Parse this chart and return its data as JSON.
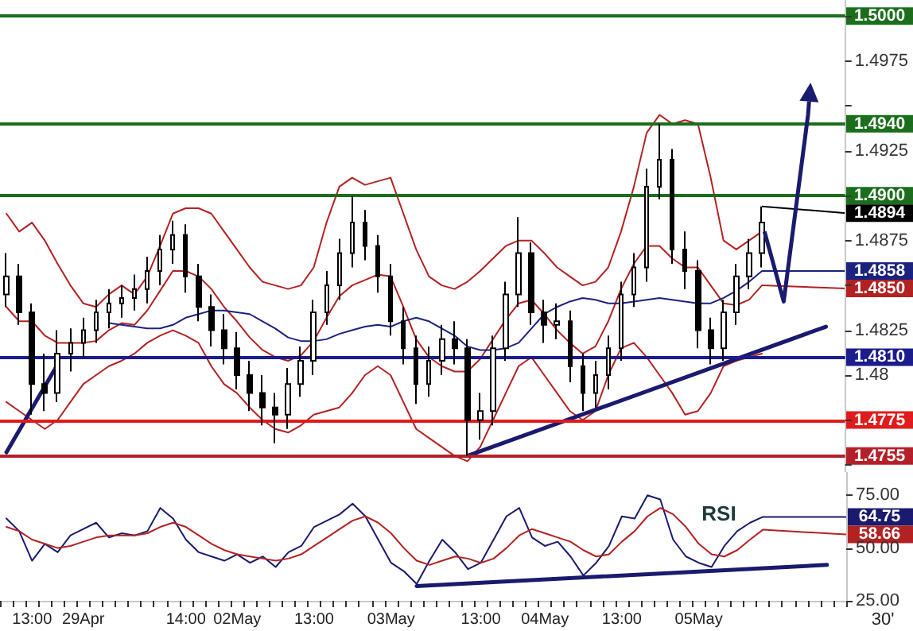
{
  "chart_data": [
    {
      "type": "candlestick",
      "color": "#000000",
      "marker": "none",
      "tick_labels": "y",
      "categories": [
        null,
        null,
        null,
        null,
        null,
        null,
        null,
        null,
        null,
        null,
        null,
        null,
        null,
        null,
        null,
        null,
        null,
        null,
        null,
        null,
        null,
        null,
        null,
        null,
        null,
        null,
        null,
        null,
        null,
        null,
        null,
        null,
        null,
        null,
        null,
        null,
        null,
        null,
        null,
        null,
        null,
        null,
        null,
        null,
        null,
        null,
        null,
        null,
        null,
        null,
        null,
        null,
        null,
        null,
        null,
        null,
        null,
        null,
        null,
        null,
        null,
        null,
        null,
        null,
        null,
        null
      ],
      "ohlc": [
        [
          1.4845,
          1.4868,
          1.4838,
          1.4855
        ],
        [
          1.4855,
          1.4862,
          1.4828,
          1.4835
        ],
        [
          1.4835,
          1.484,
          1.4778,
          1.4795
        ],
        [
          1.4795,
          1.4812,
          1.478,
          1.479
        ],
        [
          1.479,
          1.4825,
          1.4785,
          1.4812
        ],
        [
          1.4812,
          1.4826,
          1.4802,
          1.4818
        ],
        [
          1.4818,
          1.4832,
          1.481,
          1.4825
        ],
        [
          1.4825,
          1.4842,
          1.4818,
          1.4835
        ],
        [
          1.4835,
          1.4848,
          1.4826,
          1.484
        ],
        [
          1.484,
          1.485,
          1.4832,
          1.4843
        ],
        [
          1.4843,
          1.4856,
          1.4836,
          1.4848
        ],
        [
          1.4848,
          1.4866,
          1.484,
          1.4858
        ],
        [
          1.4858,
          1.4878,
          1.485,
          1.487
        ],
        [
          1.487,
          1.4886,
          1.4862,
          1.4878
        ],
        [
          1.4878,
          1.4884,
          1.4846,
          1.4855
        ],
        [
          1.4855,
          1.4862,
          1.483,
          1.4838
        ],
        [
          1.4838,
          1.4845,
          1.4816,
          1.4825
        ],
        [
          1.4825,
          1.4834,
          1.4806,
          1.4815
        ],
        [
          1.4815,
          1.4824,
          1.4792,
          1.48
        ],
        [
          1.48,
          1.4808,
          1.478,
          1.479
        ],
        [
          1.479,
          1.48,
          1.4772,
          1.4782
        ],
        [
          1.4782,
          1.479,
          1.4762,
          1.4778
        ],
        [
          1.4778,
          1.4804,
          1.477,
          1.4795
        ],
        [
          1.4795,
          1.4816,
          1.4788,
          1.4808
        ],
        [
          1.4808,
          1.4842,
          1.48,
          1.4835
        ],
        [
          1.4835,
          1.4858,
          1.4828,
          1.485
        ],
        [
          1.485,
          1.4876,
          1.4842,
          1.4868
        ],
        [
          1.4868,
          1.49,
          1.486,
          1.4885
        ],
        [
          1.4885,
          1.4892,
          1.4864,
          1.4872
        ],
        [
          1.4872,
          1.4878,
          1.4846,
          1.4855
        ],
        [
          1.4855,
          1.4862,
          1.4822,
          1.483
        ],
        [
          1.483,
          1.4838,
          1.4806,
          1.4815
        ],
        [
          1.4815,
          1.4822,
          1.4784,
          1.4795
        ],
        [
          1.4795,
          1.4816,
          1.4788,
          1.4808
        ],
        [
          1.4808,
          1.4828,
          1.48,
          1.482
        ],
        [
          1.482,
          1.483,
          1.4806,
          1.4815
        ],
        [
          1.4815,
          1.482,
          1.4755,
          1.4775
        ],
        [
          1.4775,
          1.479,
          1.4764,
          1.478
        ],
        [
          1.478,
          1.4822,
          1.4772,
          1.4815
        ],
        [
          1.4815,
          1.4852,
          1.4808,
          1.4845
        ],
        [
          1.4845,
          1.4888,
          1.4838,
          1.4868
        ],
        [
          1.4868,
          1.4874,
          1.4828,
          1.4835
        ],
        [
          1.4835,
          1.4842,
          1.4818,
          1.4828
        ],
        [
          1.4828,
          1.484,
          1.482,
          1.483
        ],
        [
          1.483,
          1.4836,
          1.4796,
          1.4805
        ],
        [
          1.4805,
          1.4812,
          1.478,
          1.479
        ],
        [
          1.479,
          1.4808,
          1.4782,
          1.48
        ],
        [
          1.48,
          1.4822,
          1.4792,
          1.4815
        ],
        [
          1.4815,
          1.4852,
          1.4808,
          1.4845
        ],
        [
          1.4845,
          1.4868,
          1.4838,
          1.486
        ],
        [
          1.486,
          1.4915,
          1.4852,
          1.4905
        ],
        [
          1.4905,
          1.494,
          1.4898,
          1.492
        ],
        [
          1.492,
          1.4926,
          1.4862,
          1.487
        ],
        [
          1.487,
          1.488,
          1.4848,
          1.4858
        ],
        [
          1.4858,
          1.4864,
          1.4815,
          1.4825
        ],
        [
          1.4825,
          1.4832,
          1.4806,
          1.4815
        ],
        [
          1.4815,
          1.4842,
          1.4808,
          1.4835
        ],
        [
          1.4835,
          1.4862,
          1.4828,
          1.4855
        ],
        [
          1.4855,
          1.4876,
          1.4848,
          1.4868
        ],
        [
          1.4868,
          1.4894,
          1.486,
          1.4885
        ],
        null,
        null,
        null,
        null,
        null,
        null
      ],
      "series": [
        {
          "type": "line",
          "color": "#b22222",
          "values": [
            1.489,
            1.488,
            1.4885,
            1.4875,
            1.4862,
            1.485,
            1.484,
            1.4838,
            1.4845,
            1.485,
            1.4845,
            1.4855,
            1.4872,
            1.489,
            1.4893,
            1.4893,
            1.489,
            1.488,
            1.487,
            1.486,
            1.4852,
            1.485,
            1.4848,
            1.485,
            1.486,
            1.4885,
            1.4905,
            1.491,
            1.4906,
            1.4908,
            1.491,
            1.489,
            1.487,
            1.4855,
            1.485,
            1.4848,
            1.4852,
            1.4858,
            1.4865,
            1.4872,
            1.4875,
            1.4875,
            1.4868,
            1.486,
            1.4855,
            1.485,
            1.4852,
            1.486,
            1.488,
            1.4905,
            1.4935,
            1.4945,
            1.494,
            1.4942,
            1.494,
            1.491,
            1.4875,
            1.487,
            1.4875,
            1.488,
            null,
            null,
            null,
            null,
            null,
            null
          ]
        },
        {
          "type": "line",
          "color": "#b22222",
          "values": [
            1.4838,
            1.483,
            1.483,
            1.4822,
            1.4818,
            1.4818,
            1.4818,
            1.4819,
            1.4825,
            1.4829,
            1.4828,
            1.4836,
            1.4847,
            1.4858,
            1.4858,
            1.4855,
            1.4848,
            1.4838,
            1.483,
            1.4821,
            1.4814,
            1.481,
            1.4808,
            1.4811,
            1.4819,
            1.4832,
            1.4844,
            1.485,
            1.4853,
            1.4856,
            1.4855,
            1.4838,
            1.482,
            1.481,
            1.4805,
            1.4802,
            1.4802,
            1.4809,
            1.482,
            1.4831,
            1.484,
            1.4842,
            1.4834,
            1.4825,
            1.4818,
            1.4812,
            1.4816,
            1.483,
            1.4848,
            1.4862,
            1.4872,
            1.4872,
            1.4865,
            1.486,
            1.486,
            1.485,
            1.484,
            1.4839,
            1.4842,
            1.485,
            null,
            null,
            null,
            null,
            null,
            null
          ],
          "value_labels": [
            null,
            null,
            null,
            null,
            null,
            null,
            null,
            null,
            null,
            null,
            null,
            null,
            null,
            null,
            null,
            null,
            null,
            null,
            null,
            null,
            null,
            null,
            null,
            null,
            null,
            null,
            null,
            null,
            null,
            null,
            null,
            null,
            null,
            null,
            null,
            null,
            null,
            null,
            null,
            null,
            null,
            null,
            null,
            null,
            null,
            null,
            null,
            null,
            null,
            null,
            null,
            null,
            null,
            null,
            null,
            null,
            null,
            null,
            null,
            "1.4850",
            null,
            null,
            null,
            null,
            null,
            null
          ]
        },
        {
          "type": "line",
          "color": "#b22222",
          "values": [
            1.4785,
            1.478,
            1.4775,
            1.477,
            1.4775,
            1.4785,
            1.4795,
            1.48,
            1.4805,
            1.4808,
            1.4812,
            1.4818,
            1.4822,
            1.4825,
            1.4822,
            1.4818,
            1.4805,
            1.4795,
            1.479,
            1.4782,
            1.4775,
            1.477,
            1.4768,
            1.4772,
            1.4778,
            1.478,
            1.4782,
            1.479,
            1.48,
            1.4805,
            1.48,
            1.4785,
            1.477,
            1.4765,
            1.476,
            1.4755,
            1.4752,
            1.476,
            1.4775,
            1.479,
            1.4805,
            1.481,
            1.48,
            1.479,
            1.478,
            1.4775,
            1.478,
            1.48,
            1.4815,
            1.4818,
            1.481,
            1.48,
            1.479,
            1.4778,
            1.478,
            1.479,
            1.4805,
            1.4808,
            1.481,
            1.4812,
            null,
            null,
            null,
            null,
            null,
            null
          ]
        },
        {
          "type": "line",
          "color": "#1a237e",
          "values": [
            null,
            null,
            null,
            null,
            null,
            null,
            null,
            null,
            1.4829,
            1.4828,
            1.4827,
            1.4826,
            1.4826,
            1.4828,
            1.4832,
            1.4834,
            1.4836,
            1.4836,
            1.4835,
            1.4834,
            1.483,
            1.4826,
            1.4821,
            1.4819,
            1.4819,
            1.482,
            1.4823,
            1.4825,
            1.4827,
            1.4828,
            1.4827,
            1.483,
            1.4832,
            1.483,
            1.4826,
            1.4822,
            1.4816,
            1.4814,
            1.4814,
            1.4815,
            1.4818,
            1.4826,
            1.4834,
            1.4838,
            1.4841,
            1.4843,
            1.4842,
            1.484,
            1.484,
            1.4841,
            1.4842,
            1.4843,
            1.4842,
            1.4841,
            1.484,
            1.484,
            1.4843,
            1.4847,
            1.4852,
            1.4858,
            null,
            null,
            null,
            null,
            null,
            null
          ],
          "value_labels": [
            null,
            null,
            null,
            null,
            null,
            null,
            null,
            null,
            null,
            null,
            null,
            null,
            null,
            null,
            null,
            null,
            null,
            null,
            null,
            null,
            null,
            null,
            null,
            null,
            null,
            null,
            null,
            null,
            null,
            null,
            null,
            null,
            null,
            null,
            null,
            null,
            null,
            null,
            null,
            null,
            null,
            null,
            null,
            null,
            null,
            null,
            null,
            null,
            null,
            null,
            null,
            null,
            null,
            null,
            null,
            null,
            null,
            null,
            null,
            "1.4858",
            null,
            null,
            null,
            null,
            null,
            null
          ]
        },
        {
          "type": "line",
          "color": "#1a1a6e",
          "values": [
            1.4757,
            null,
            null,
            null,
            1.4806,
            null,
            null,
            null,
            null,
            null,
            null,
            null,
            null,
            null,
            null,
            null,
            null,
            null,
            null,
            null,
            null,
            null,
            null,
            null,
            null,
            null,
            null,
            null,
            null,
            null,
            null,
            null,
            null,
            null,
            null,
            null,
            null,
            null,
            null,
            null,
            null,
            null,
            null,
            null,
            null,
            null,
            null,
            null,
            null,
            null,
            null,
            null,
            null,
            null,
            null,
            null,
            null,
            null,
            null,
            null,
            null,
            null,
            null,
            null,
            null,
            null
          ]
        },
        {
          "type": "line",
          "color": "#1a1a6e",
          "values": [
            null,
            null,
            null,
            null,
            null,
            null,
            null,
            null,
            null,
            null,
            null,
            null,
            null,
            null,
            null,
            null,
            null,
            null,
            null,
            null,
            null,
            null,
            null,
            null,
            null,
            null,
            null,
            null,
            null,
            null,
            null,
            null,
            null,
            null,
            null,
            null,
            1.4755,
            null,
            null,
            null,
            null,
            null,
            null,
            null,
            null,
            null,
            null,
            null,
            null,
            null,
            null,
            null,
            null,
            null,
            null,
            null,
            null,
            null,
            null,
            null,
            null,
            null,
            null,
            null,
            1.4827,
            null
          ]
        }
      ],
      "ylim": [
        1.4746,
        1.5009
      ],
      "yticks": [
        {
          "value": 1.475,
          "label": null
        },
        {
          "value": 1.4775,
          "label": null
        },
        1.48,
        1.4825,
        {
          "value": 1.485,
          "label": null
        },
        1.4875,
        {
          "value": 1.49,
          "label": null
        },
        1.4925,
        {
          "value": 1.495,
          "label": null
        },
        1.4975,
        {
          "value": 1.5,
          "label": null
        }
      ],
      "ref_lines": [
        {
          "axis": "y",
          "value": 1.5,
          "label": "1.5000",
          "color": "#1b6e1b"
        },
        {
          "axis": "y",
          "value": 1.494,
          "label": "1.4940",
          "color": "#1b6e1b"
        },
        {
          "axis": "y",
          "value": 1.49,
          "label": "1.4900",
          "color": "#1b6e1b"
        },
        {
          "axis": "y",
          "value": 1.481,
          "label": "1.4810",
          "color": "#1c1c8c"
        },
        {
          "axis": "y",
          "value": 1.4775,
          "label": "1.4775",
          "color": "#e01b1b"
        },
        {
          "axis": "y",
          "value": 1.4755,
          "label": "1.4755",
          "color": "#b3202a"
        }
      ],
      "value_labels": [
        null,
        null,
        null,
        null,
        null,
        null,
        null,
        null,
        null,
        null,
        null,
        null,
        null,
        null,
        null,
        null,
        null,
        null,
        null,
        null,
        null,
        null,
        null,
        null,
        null,
        null,
        null,
        null,
        null,
        null,
        null,
        null,
        null,
        null,
        null,
        null,
        null,
        null,
        null,
        null,
        null,
        null,
        null,
        null,
        null,
        null,
        null,
        null,
        null,
        null,
        null,
        null,
        null,
        null,
        null,
        null,
        null,
        null,
        null,
        "1.4894",
        null,
        null,
        null,
        null,
        null,
        null
      ]
    },
    {
      "type": "line",
      "marker": "none",
      "categories": [
        null,
        null,
        "13:00",
        null,
        null,
        null,
        "29Apr",
        null,
        null,
        null,
        null,
        null,
        null,
        null,
        "14:00",
        null,
        null,
        null,
        "02May",
        null,
        null,
        null,
        null,
        null,
        "13:00",
        null,
        null,
        null,
        null,
        null,
        "03May",
        null,
        null,
        null,
        null,
        null,
        null,
        "13:00",
        null,
        null,
        null,
        null,
        "04May",
        null,
        null,
        null,
        null,
        null,
        "13:00",
        null,
        null,
        null,
        null,
        null,
        "05May",
        null,
        null,
        null,
        null,
        null,
        null,
        null,
        null,
        null,
        null,
        null
      ],
      "series": [
        {
          "color": "#1a1a6e",
          "values": [
            64,
            58,
            44,
            52,
            48,
            56,
            59,
            62,
            55,
            57,
            56,
            58,
            69,
            64,
            54,
            48,
            46,
            44,
            47,
            43,
            46,
            41,
            48,
            51,
            60,
            63,
            66,
            71,
            65,
            54,
            43,
            39,
            33,
            44,
            54,
            48,
            40,
            43,
            54,
            65,
            69,
            55,
            51,
            53,
            46,
            37,
            43,
            51,
            65,
            64,
            75,
            73,
            54,
            46,
            43,
            41,
            51,
            58,
            62,
            64.75,
            null,
            null,
            null,
            null,
            null,
            null
          ],
          "value_labels": [
            null,
            null,
            null,
            null,
            null,
            null,
            null,
            null,
            null,
            null,
            null,
            null,
            null,
            null,
            null,
            null,
            null,
            null,
            null,
            null,
            null,
            null,
            null,
            null,
            null,
            null,
            null,
            null,
            null,
            null,
            null,
            null,
            null,
            null,
            null,
            null,
            null,
            null,
            null,
            null,
            null,
            null,
            null,
            null,
            null,
            null,
            null,
            null,
            null,
            null,
            null,
            null,
            null,
            null,
            null,
            null,
            null,
            null,
            null,
            "64.75",
            null,
            null,
            null,
            null,
            null,
            null
          ]
        },
        {
          "color": "#b22222",
          "values": [
            60,
            58,
            54,
            52,
            50,
            51,
            53,
            55,
            56,
            56,
            56,
            57,
            60,
            62,
            60,
            56,
            52,
            49,
            47,
            46,
            45,
            44,
            45,
            47,
            51,
            55,
            59,
            63,
            65,
            62,
            57,
            50,
            44,
            42,
            44,
            46,
            45,
            43,
            45,
            50,
            56,
            59,
            57,
            55,
            53,
            49,
            46,
            47,
            53,
            58,
            65,
            69,
            66,
            60,
            52,
            47,
            46,
            49,
            54,
            58.66,
            null,
            null,
            null,
            null,
            null,
            null
          ],
          "value_labels": [
            null,
            null,
            null,
            null,
            null,
            null,
            null,
            null,
            null,
            null,
            null,
            null,
            null,
            null,
            null,
            null,
            null,
            null,
            null,
            null,
            null,
            null,
            null,
            null,
            null,
            null,
            null,
            null,
            null,
            null,
            null,
            null,
            null,
            null,
            null,
            null,
            null,
            null,
            null,
            null,
            null,
            null,
            null,
            null,
            null,
            null,
            null,
            null,
            null,
            null,
            null,
            null,
            null,
            null,
            null,
            null,
            null,
            null,
            null,
            "58.66",
            null,
            null,
            null,
            null,
            null,
            null
          ]
        },
        {
          "color": "#1a1a6e",
          "values": [
            null,
            null,
            null,
            null,
            null,
            null,
            null,
            null,
            null,
            null,
            null,
            null,
            null,
            null,
            null,
            null,
            null,
            null,
            null,
            null,
            null,
            null,
            null,
            null,
            null,
            null,
            null,
            null,
            null,
            null,
            null,
            null,
            32,
            null,
            null,
            null,
            null,
            null,
            null,
            null,
            null,
            null,
            null,
            null,
            null,
            null,
            null,
            null,
            null,
            null,
            null,
            null,
            null,
            null,
            null,
            null,
            null,
            null,
            null,
            null,
            null,
            null,
            null,
            null,
            42,
            null
          ]
        }
      ],
      "ylim": [
        25,
        86
      ],
      "yticks": [
        {
          "value": 25,
          "label": "25.00"
        },
        {
          "value": 50,
          "label": "50.00"
        },
        {
          "value": 75,
          "label": "75.00"
        }
      ],
      "annotations": [
        "RSI",
        "30'"
      ]
    }
  ]
}
